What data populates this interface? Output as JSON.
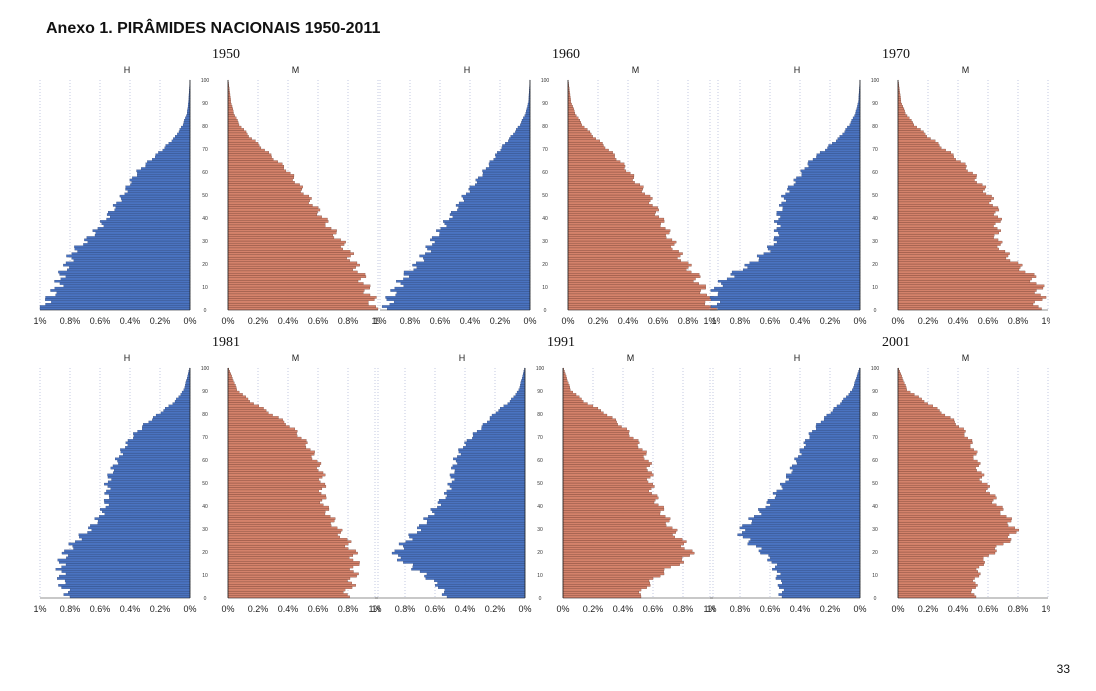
{
  "title": "Anexo 1. PIRÂMIDES NACIONAIS 1950-2011",
  "page_number": "33",
  "colors": {
    "male": "#4a73c0",
    "female": "#d4826b",
    "grid": "#aab3d6"
  },
  "chart_data": [
    {
      "type": "bar",
      "year": "1950",
      "left_label": "H",
      "right_label": "M",
      "age_ticks": [
        "0",
        "10",
        "20",
        "30",
        "40",
        "50",
        "60",
        "70",
        "80",
        "90",
        "100"
      ],
      "x_ticks_left": [
        "1%",
        "0.8%",
        "0.6%",
        "0.4%",
        "0.2%",
        "0%"
      ],
      "x_ticks_right": [
        "0%",
        "0.2%",
        "0.4%",
        "0.6%",
        "0.8%",
        "1%"
      ],
      "xlim": [
        0,
        1.05
      ],
      "male_profile": [
        [
          0,
          1.05
        ],
        [
          5,
          0.98
        ],
        [
          10,
          0.92
        ],
        [
          15,
          0.9
        ],
        [
          20,
          0.85
        ],
        [
          25,
          0.82
        ],
        [
          30,
          0.72
        ],
        [
          35,
          0.64
        ],
        [
          40,
          0.58
        ],
        [
          45,
          0.52
        ],
        [
          50,
          0.46
        ],
        [
          55,
          0.42
        ],
        [
          60,
          0.36
        ],
        [
          65,
          0.27
        ],
        [
          70,
          0.18
        ],
        [
          75,
          0.1
        ],
        [
          80,
          0.05
        ],
        [
          85,
          0.02
        ],
        [
          90,
          0.01
        ],
        [
          100,
          0
        ]
      ],
      "female_profile": [
        [
          0,
          1.03
        ],
        [
          5,
          1.0
        ],
        [
          10,
          0.96
        ],
        [
          15,
          0.93
        ],
        [
          20,
          0.88
        ],
        [
          25,
          0.84
        ],
        [
          30,
          0.78
        ],
        [
          35,
          0.72
        ],
        [
          40,
          0.66
        ],
        [
          45,
          0.6
        ],
        [
          50,
          0.54
        ],
        [
          55,
          0.48
        ],
        [
          60,
          0.42
        ],
        [
          65,
          0.33
        ],
        [
          70,
          0.24
        ],
        [
          75,
          0.15
        ],
        [
          80,
          0.08
        ],
        [
          85,
          0.04
        ],
        [
          90,
          0.02
        ],
        [
          100,
          0
        ]
      ]
    },
    {
      "type": "bar",
      "year": "1960",
      "left_label": "H",
      "right_label": "M",
      "age_ticks": [
        "0",
        "10",
        "20",
        "30",
        "40",
        "50",
        "60",
        "70",
        "80",
        "90",
        "100"
      ],
      "x_ticks_left": [
        "1%",
        "0.8%",
        "0.6%",
        "0.4%",
        "0.2%",
        "0%"
      ],
      "x_ticks_right": [
        "0%",
        "0.2%",
        "0.4%",
        "0.6%",
        "0.8%",
        "1%"
      ],
      "xlim": [
        0,
        1.05
      ],
      "male_profile": [
        [
          0,
          1.0
        ],
        [
          5,
          0.98
        ],
        [
          10,
          0.92
        ],
        [
          15,
          0.87
        ],
        [
          20,
          0.78
        ],
        [
          25,
          0.72
        ],
        [
          30,
          0.68
        ],
        [
          35,
          0.62
        ],
        [
          40,
          0.56
        ],
        [
          45,
          0.5
        ],
        [
          50,
          0.45
        ],
        [
          55,
          0.38
        ],
        [
          60,
          0.32
        ],
        [
          65,
          0.26
        ],
        [
          70,
          0.2
        ],
        [
          75,
          0.13
        ],
        [
          80,
          0.07
        ],
        [
          85,
          0.03
        ],
        [
          90,
          0.01
        ],
        [
          100,
          0
        ]
      ],
      "female_profile": [
        [
          0,
          1.0
        ],
        [
          5,
          0.98
        ],
        [
          10,
          0.93
        ],
        [
          15,
          0.89
        ],
        [
          20,
          0.82
        ],
        [
          25,
          0.76
        ],
        [
          30,
          0.72
        ],
        [
          35,
          0.68
        ],
        [
          40,
          0.64
        ],
        [
          45,
          0.6
        ],
        [
          50,
          0.55
        ],
        [
          55,
          0.48
        ],
        [
          60,
          0.42
        ],
        [
          65,
          0.35
        ],
        [
          70,
          0.27
        ],
        [
          75,
          0.18
        ],
        [
          80,
          0.1
        ],
        [
          85,
          0.05
        ],
        [
          90,
          0.02
        ],
        [
          100,
          0
        ]
      ]
    },
    {
      "type": "bar",
      "year": "1970",
      "left_label": "H",
      "right_label": "M",
      "age_ticks": [
        "0",
        "10",
        "20",
        "30",
        "40",
        "50",
        "60",
        "70",
        "80",
        "90",
        "100"
      ],
      "x_ticks_left": [
        "1%",
        "0.8%",
        "0.6%",
        "0.4%",
        "0.2%",
        "0%"
      ],
      "x_ticks_right": [
        "0%",
        "0.2%",
        "0.4%",
        "0.6%",
        "0.8%",
        "1%"
      ],
      "xlim": [
        0,
        1.0
      ],
      "male_profile": [
        [
          0,
          0.95
        ],
        [
          5,
          0.98
        ],
        [
          10,
          0.95
        ],
        [
          15,
          0.85
        ],
        [
          20,
          0.72
        ],
        [
          25,
          0.62
        ],
        [
          30,
          0.56
        ],
        [
          35,
          0.55
        ],
        [
          40,
          0.55
        ],
        [
          45,
          0.52
        ],
        [
          50,
          0.5
        ],
        [
          55,
          0.44
        ],
        [
          60,
          0.38
        ],
        [
          65,
          0.32
        ],
        [
          70,
          0.22
        ],
        [
          75,
          0.13
        ],
        [
          80,
          0.07
        ],
        [
          85,
          0.03
        ],
        [
          90,
          0.01
        ],
        [
          100,
          0
        ]
      ],
      "female_profile": [
        [
          0,
          0.92
        ],
        [
          5,
          0.95
        ],
        [
          10,
          0.94
        ],
        [
          15,
          0.88
        ],
        [
          20,
          0.78
        ],
        [
          25,
          0.7
        ],
        [
          30,
          0.66
        ],
        [
          35,
          0.66
        ],
        [
          40,
          0.67
        ],
        [
          45,
          0.64
        ],
        [
          50,
          0.6
        ],
        [
          55,
          0.54
        ],
        [
          60,
          0.48
        ],
        [
          65,
          0.4
        ],
        [
          70,
          0.3
        ],
        [
          75,
          0.2
        ],
        [
          80,
          0.11
        ],
        [
          85,
          0.05
        ],
        [
          90,
          0.02
        ],
        [
          100,
          0
        ]
      ]
    },
    {
      "type": "bar",
      "year": "1981",
      "left_label": "H",
      "right_label": "M",
      "age_ticks": [
        "0",
        "10",
        "20",
        "30",
        "40",
        "50",
        "60",
        "70",
        "80",
        "90",
        "100"
      ],
      "x_ticks_left": [
        "1%",
        "0.8%",
        "0.6%",
        "0.4%",
        "0.2%",
        "0%"
      ],
      "x_ticks_right": [
        "0%",
        "0.2%",
        "0.4%",
        "0.6%",
        "0.8%",
        "1%"
      ],
      "xlim": [
        0,
        1.0
      ],
      "male_profile": [
        [
          0,
          0.8
        ],
        [
          5,
          0.85
        ],
        [
          10,
          0.86
        ],
        [
          15,
          0.86
        ],
        [
          20,
          0.82
        ],
        [
          25,
          0.75
        ],
        [
          30,
          0.66
        ],
        [
          35,
          0.6
        ],
        [
          40,
          0.56
        ],
        [
          45,
          0.55
        ],
        [
          50,
          0.55
        ],
        [
          55,
          0.52
        ],
        [
          60,
          0.48
        ],
        [
          65,
          0.44
        ],
        [
          70,
          0.38
        ],
        [
          75,
          0.3
        ],
        [
          80,
          0.2
        ],
        [
          85,
          0.1
        ],
        [
          90,
          0.04
        ],
        [
          100,
          0
        ]
      ],
      "female_profile": [
        [
          0,
          0.78
        ],
        [
          5,
          0.82
        ],
        [
          10,
          0.84
        ],
        [
          15,
          0.85
        ],
        [
          20,
          0.83
        ],
        [
          25,
          0.78
        ],
        [
          30,
          0.72
        ],
        [
          35,
          0.68
        ],
        [
          40,
          0.64
        ],
        [
          45,
          0.63
        ],
        [
          50,
          0.63
        ],
        [
          55,
          0.62
        ],
        [
          60,
          0.58
        ],
        [
          65,
          0.54
        ],
        [
          70,
          0.48
        ],
        [
          75,
          0.4
        ],
        [
          80,
          0.28
        ],
        [
          85,
          0.15
        ],
        [
          90,
          0.06
        ],
        [
          100,
          0
        ]
      ]
    },
    {
      "type": "bar",
      "year": "1991",
      "left_label": "H",
      "right_label": "M",
      "age_ticks": [
        "0",
        "10",
        "20",
        "30",
        "40",
        "50",
        "60",
        "70",
        "80",
        "90",
        "100"
      ],
      "x_ticks_left": [
        "1%",
        "0.8%",
        "0.6%",
        "0.4%",
        "0.2%",
        "0%"
      ],
      "x_ticks_right": [
        "0%",
        "0.2%",
        "0.4%",
        "0.6%",
        "0.8%",
        "1%"
      ],
      "xlim": [
        0,
        1.0
      ],
      "male_profile": [
        [
          0,
          0.52
        ],
        [
          5,
          0.58
        ],
        [
          10,
          0.68
        ],
        [
          15,
          0.8
        ],
        [
          18,
          0.87
        ],
        [
          20,
          0.85
        ],
        [
          25,
          0.78
        ],
        [
          30,
          0.7
        ],
        [
          35,
          0.64
        ],
        [
          40,
          0.58
        ],
        [
          45,
          0.52
        ],
        [
          50,
          0.49
        ],
        [
          55,
          0.48
        ],
        [
          60,
          0.46
        ],
        [
          65,
          0.42
        ],
        [
          70,
          0.35
        ],
        [
          75,
          0.27
        ],
        [
          80,
          0.2
        ],
        [
          85,
          0.1
        ],
        [
          90,
          0.04
        ],
        [
          100,
          0
        ]
      ],
      "female_profile": [
        [
          0,
          0.5
        ],
        [
          5,
          0.56
        ],
        [
          10,
          0.65
        ],
        [
          15,
          0.78
        ],
        [
          18,
          0.85
        ],
        [
          20,
          0.84
        ],
        [
          25,
          0.78
        ],
        [
          30,
          0.72
        ],
        [
          35,
          0.68
        ],
        [
          40,
          0.64
        ],
        [
          45,
          0.6
        ],
        [
          50,
          0.58
        ],
        [
          55,
          0.58
        ],
        [
          60,
          0.56
        ],
        [
          65,
          0.52
        ],
        [
          70,
          0.46
        ],
        [
          75,
          0.38
        ],
        [
          80,
          0.28
        ],
        [
          85,
          0.14
        ],
        [
          90,
          0.05
        ],
        [
          100,
          0
        ]
      ]
    },
    {
      "type": "bar",
      "year": "2001",
      "left_label": "H",
      "right_label": "M",
      "age_ticks": [
        "0",
        "10",
        "20",
        "30",
        "40",
        "50",
        "60",
        "70",
        "80",
        "90",
        "100"
      ],
      "x_ticks_left": [
        "1%",
        "0.8%",
        "0.6%",
        "0.4%",
        "0.2%",
        "0%"
      ],
      "x_ticks_right": [
        "0%",
        "0.2%",
        "0.4%",
        "0.6%",
        "0.8%",
        "1%"
      ],
      "xlim": [
        0,
        1.0
      ],
      "male_profile": [
        [
          0,
          0.52
        ],
        [
          5,
          0.53
        ],
        [
          10,
          0.55
        ],
        [
          15,
          0.58
        ],
        [
          20,
          0.66
        ],
        [
          25,
          0.76
        ],
        [
          28,
          0.8
        ],
        [
          30,
          0.78
        ],
        [
          35,
          0.7
        ],
        [
          40,
          0.62
        ],
        [
          45,
          0.56
        ],
        [
          50,
          0.5
        ],
        [
          55,
          0.46
        ],
        [
          60,
          0.42
        ],
        [
          65,
          0.38
        ],
        [
          70,
          0.34
        ],
        [
          75,
          0.28
        ],
        [
          80,
          0.2
        ],
        [
          85,
          0.12
        ],
        [
          90,
          0.05
        ],
        [
          100,
          0
        ]
      ],
      "female_profile": [
        [
          0,
          0.5
        ],
        [
          5,
          0.51
        ],
        [
          10,
          0.53
        ],
        [
          15,
          0.56
        ],
        [
          20,
          0.64
        ],
        [
          25,
          0.74
        ],
        [
          28,
          0.78
        ],
        [
          30,
          0.77
        ],
        [
          35,
          0.72
        ],
        [
          40,
          0.66
        ],
        [
          45,
          0.62
        ],
        [
          50,
          0.57
        ],
        [
          55,
          0.54
        ],
        [
          60,
          0.52
        ],
        [
          65,
          0.5
        ],
        [
          70,
          0.46
        ],
        [
          75,
          0.4
        ],
        [
          80,
          0.3
        ],
        [
          85,
          0.18
        ],
        [
          90,
          0.06
        ],
        [
          100,
          0
        ]
      ]
    }
  ]
}
